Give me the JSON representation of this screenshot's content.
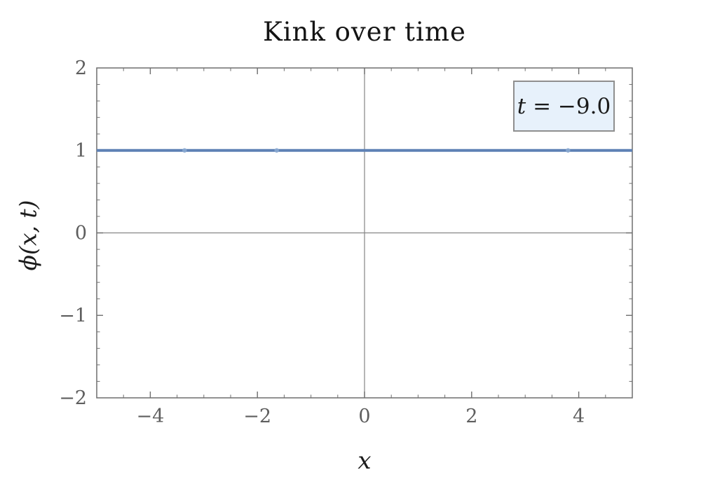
{
  "title": "Kink over time",
  "axes": {
    "xlabel": "x",
    "ylabel": "ϕ(x, t)"
  },
  "legend": {
    "var": "t",
    "rest": " = −9.0"
  },
  "chart_data": {
    "type": "line",
    "title": "Kink over time",
    "xlabel": "x",
    "ylabel": "ϕ(x, t)",
    "xlim": [
      -5,
      5
    ],
    "ylim": [
      -2,
      2
    ],
    "frame": true,
    "origin_axes": true,
    "grid": false,
    "x_major_ticks": [
      -4,
      -2,
      0,
      2,
      4
    ],
    "x_major_tick_labels": [
      "−4",
      "−2",
      "0",
      "2",
      "4"
    ],
    "x_minor_tick_step": 0.5,
    "y_major_ticks": [
      -2,
      -1,
      0,
      1,
      2
    ],
    "y_major_tick_labels": [
      "−2",
      "−1",
      "0",
      "1",
      "2"
    ],
    "y_minor_tick_step": 0.2,
    "annotation": {
      "text": "t = −9.0",
      "position": "top-right-inside"
    },
    "series": [
      {
        "name": "phi-of-x-at-t-minus-9",
        "x": [
          -5,
          5
        ],
        "y": [
          1,
          1
        ],
        "color": "#5e81b5",
        "width": 4,
        "point_markers_x": [
          -3.36,
          -1.64,
          3.8
        ],
        "point_marker_y": 1,
        "point_marker_color": "#8aa8d0"
      }
    ],
    "colors": {
      "frame": "#6e6e6e",
      "tick": "#6e6e6e",
      "tick_label": "#5e5e5e",
      "origin_axis": "#858585",
      "legend_bg": "#e7f1fb",
      "legend_border": "#8f8f8f",
      "title_text": "#141414"
    }
  }
}
